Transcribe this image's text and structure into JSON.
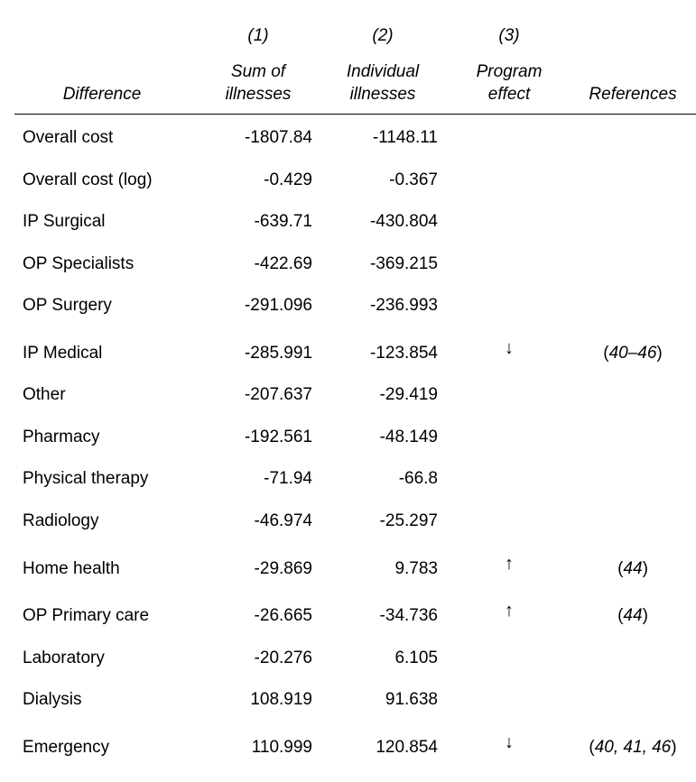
{
  "header": {
    "col_numbers": [
      "(1)",
      "(2)",
      "(3)"
    ],
    "difference": "Difference",
    "col1": [
      "Sum of",
      "illnesses"
    ],
    "col2": [
      "Individual",
      "illnesses"
    ],
    "col3": [
      "Program",
      "effect"
    ],
    "references": "References"
  },
  "rows": [
    {
      "name": "Overall cost",
      "v1": "-1807.84",
      "v2": "-1148.11",
      "effect": "",
      "ref": ""
    },
    {
      "name": "Overall cost (log)",
      "v1": "-0.429",
      "v2": "-0.367",
      "effect": "",
      "ref": ""
    },
    {
      "name": "IP Surgical",
      "v1": "-639.71",
      "v2": "-430.804",
      "effect": "",
      "ref": ""
    },
    {
      "name": "OP Specialists",
      "v1": "-422.69",
      "v2": "-369.215",
      "effect": "",
      "ref": ""
    },
    {
      "name": "OP Surgery",
      "v1": "-291.096",
      "v2": "-236.993",
      "effect": "",
      "ref": ""
    },
    {
      "name": "IP Medical",
      "v1": "-285.991",
      "v2": "-123.854",
      "effect": "↓",
      "ref": "40–46"
    },
    {
      "name": "Other",
      "v1": "-207.637",
      "v2": "-29.419",
      "effect": "",
      "ref": ""
    },
    {
      "name": "Pharmacy",
      "v1": "-192.561",
      "v2": "-48.149",
      "effect": "",
      "ref": ""
    },
    {
      "name": "Physical therapy",
      "v1": "-71.94",
      "v2": "-66.8",
      "effect": "",
      "ref": ""
    },
    {
      "name": "Radiology",
      "v1": "-46.974",
      "v2": "-25.297",
      "effect": "",
      "ref": ""
    },
    {
      "name": "Home health",
      "v1": "-29.869",
      "v2": "9.783",
      "effect": "↑",
      "ref": "44"
    },
    {
      "name": "OP Primary care",
      "v1": "-26.665",
      "v2": "-34.736",
      "effect": "↑",
      "ref": "44"
    },
    {
      "name": "Laboratory",
      "v1": "-20.276",
      "v2": "6.105",
      "effect": "",
      "ref": ""
    },
    {
      "name": "Dialysis",
      "v1": "108.919",
      "v2": "91.638",
      "effect": "",
      "ref": ""
    },
    {
      "name": "Emergency",
      "v1": "110.999",
      "v2": "120.854",
      "effect": "↓",
      "ref": "40, 41, 46"
    }
  ]
}
